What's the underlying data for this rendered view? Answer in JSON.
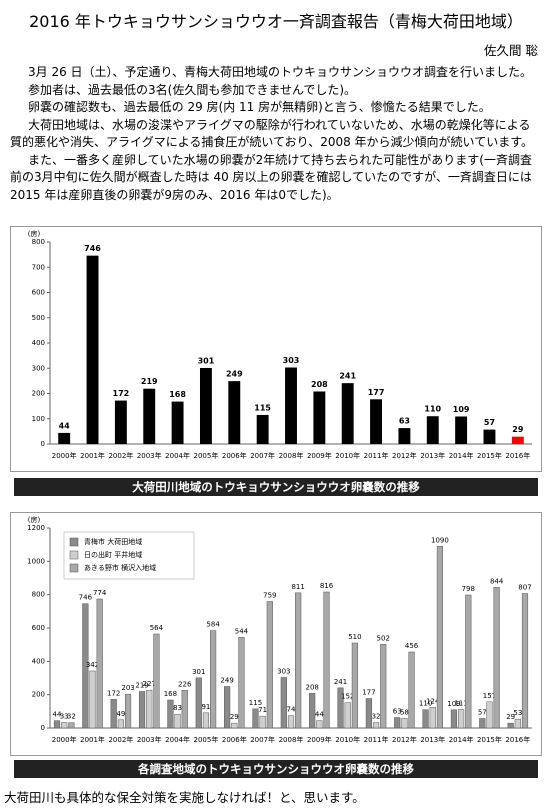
{
  "header": {
    "title": "2016 年トウキョウサンショウウオ一斉調査報告（青梅大荷田地域）",
    "author": "佐久間 聡"
  },
  "paragraphs": [
    "3月 26 日（土）、予定通り、青梅大荷田地域のトウキョウサンショウウオ調査を行いました。",
    "参加者は、過去最低の3名(佐久間も参加できませんでした)。",
    "卵嚢の確認数も、過去最低の 29 房(内 11 房が無精卵)と言う、惨憺たる結果でした。",
    "大荷田地域は、水場の浚渫やアライグマの駆除が行われていないため、水場の乾燥化等による質的悪化や消失、アライグマによる捕食圧が続いており、2008 年から減少傾向が続いています。",
    "また、一番多く産卵していた水場の卵嚢が2年続けて持ち去られた可能性があります(一斉調査前の3月中旬に佐久間が概査した時は 40 房以上の卵嚢を確認していたのですが、一斉調査日には 2015 年は産卵直後の卵嚢が9房のみ、2016 年は0でした)。"
  ],
  "chart_data": [
    {
      "type": "bar",
      "caption": "大荷田川地域のトウキョウサンショウウオ卵嚢数の推移",
      "y_label": "(房)",
      "categories": [
        "2000年",
        "2001年",
        "2002年",
        "2003年",
        "2004年",
        "2005年",
        "2006年",
        "2007年",
        "2008年",
        "2009年",
        "2010年",
        "2011年",
        "2012年",
        "2013年",
        "2014年",
        "2015年",
        "2016年"
      ],
      "values": [
        44,
        746,
        172,
        219,
        168,
        301,
        249,
        115,
        303,
        208,
        241,
        177,
        63,
        110,
        109,
        57,
        29
      ],
      "colors": [
        "#000000",
        "#000000",
        "#000000",
        "#000000",
        "#000000",
        "#000000",
        "#000000",
        "#000000",
        "#000000",
        "#000000",
        "#000000",
        "#000000",
        "#000000",
        "#000000",
        "#000000",
        "#000000",
        "#ff0000"
      ],
      "ylim": [
        0,
        800
      ],
      "yticks": [
        0,
        100,
        200,
        300,
        400,
        500,
        600,
        700,
        800
      ]
    },
    {
      "type": "bar",
      "caption": "各調査地域のトウキョウサンショウウオ卵嚢数の推移",
      "y_label": "(房)",
      "legend": "upper left",
      "categories": [
        "2000年",
        "2001年",
        "2002年",
        "2003年",
        "2004年",
        "2005年",
        "2006年",
        "2007年",
        "2008年",
        "2009年",
        "2010年",
        "2011年",
        "2012年",
        "2013年",
        "2014年",
        "2015年",
        "2016年"
      ],
      "series": [
        {
          "name": "青梅市 大荷田地域",
          "color": "#8a8a8a",
          "values": [
            44,
            746,
            172,
            219,
            168,
            301,
            249,
            115,
            303,
            208,
            241,
            177,
            63,
            110,
            109,
            57,
            29
          ]
        },
        {
          "name": "日の出町 平井地域",
          "color": "#cfcfcf",
          "values": [
            33,
            342,
            49,
            227,
            83,
            91,
            29,
            71,
            74,
            44,
            152,
            32,
            58,
            124,
            111,
            157,
            53
          ]
        },
        {
          "name": "あきる野市 横沢入地域",
          "color": "#a8a8a8",
          "values": [
            32,
            774,
            203,
            564,
            226,
            584,
            544,
            759,
            811,
            816,
            510,
            502,
            456,
            1090,
            798,
            844,
            807
          ]
        }
      ],
      "ylim": [
        0,
        1200
      ],
      "yticks": [
        0,
        200,
        400,
        600,
        800,
        1000,
        1200
      ]
    }
  ],
  "footer": "大荷田川も具体的な保全対策を実施しなければ！と、思います。"
}
